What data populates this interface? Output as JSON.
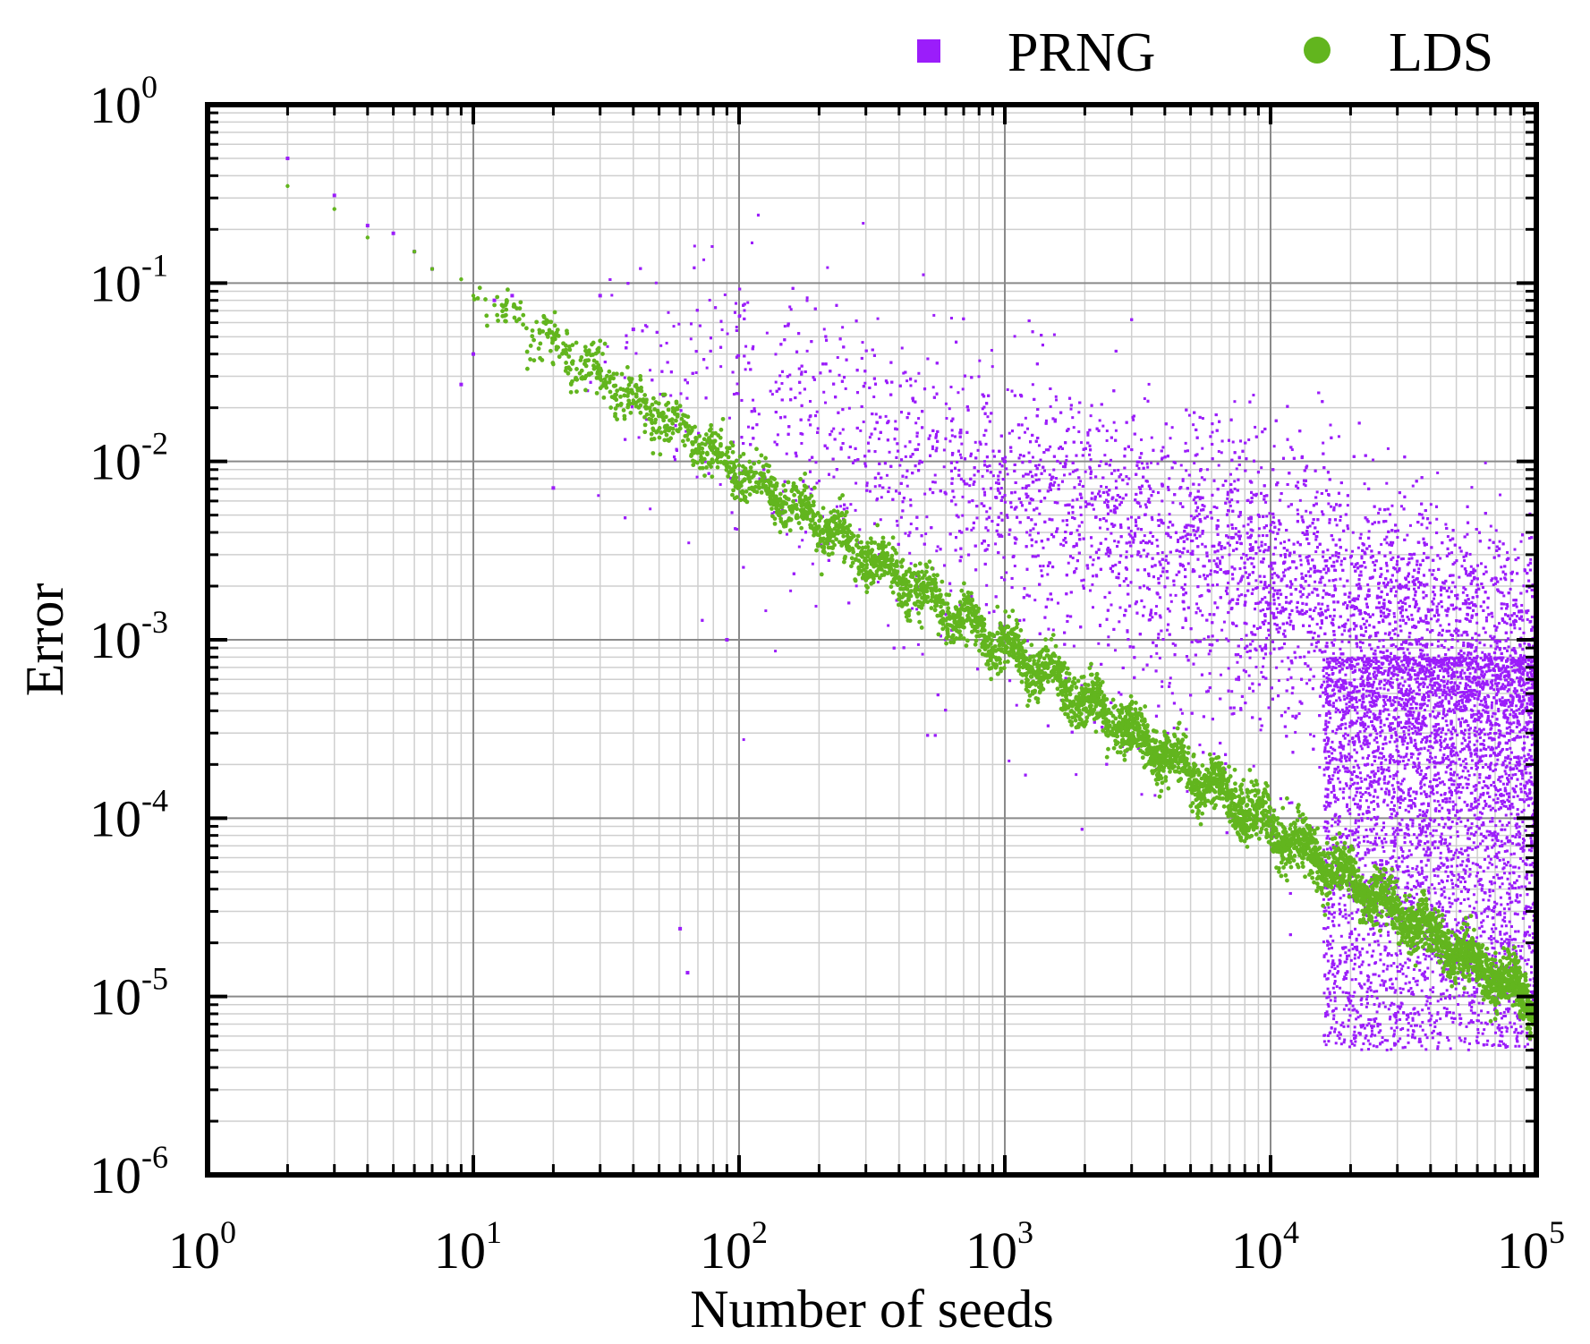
{
  "chart_data": {
    "type": "scatter",
    "title": "",
    "xlabel": "Number of seeds",
    "ylabel": "Error",
    "xscale": "log",
    "yscale": "log",
    "xlim": [
      1,
      100000
    ],
    "ylim": [
      1e-06,
      1
    ],
    "grid": true,
    "legend_position": "top-right, above plot",
    "x_ticks": [
      {
        "base": "10",
        "exp": "0",
        "value": 1
      },
      {
        "base": "10",
        "exp": "1",
        "value": 10
      },
      {
        "base": "10",
        "exp": "2",
        "value": 100
      },
      {
        "base": "10",
        "exp": "3",
        "value": 1000
      },
      {
        "base": "10",
        "exp": "4",
        "value": 10000
      },
      {
        "base": "10",
        "exp": "5",
        "value": 100000
      }
    ],
    "y_ticks": [
      {
        "base": "10",
        "exp": "0",
        "value": 1
      },
      {
        "base": "10",
        "exp": "-1",
        "value": 0.1
      },
      {
        "base": "10",
        "exp": "-2",
        "value": 0.01
      },
      {
        "base": "10",
        "exp": "-3",
        "value": 0.001
      },
      {
        "base": "10",
        "exp": "-4",
        "value": 0.0001
      },
      {
        "base": "10",
        "exp": "-5",
        "value": 1e-05
      },
      {
        "base": "10",
        "exp": "-6",
        "value": 1e-06
      }
    ],
    "series": [
      {
        "name": "PRNG",
        "color": "#9b1dfa",
        "marker": "square",
        "description": "Error roughly scales as N^-0.5 with wide scatter",
        "points": [
          {
            "x": 2,
            "y": 0.5
          },
          {
            "x": 3,
            "y": 0.31
          },
          {
            "x": 4,
            "y": 0.21
          },
          {
            "x": 5,
            "y": 0.19
          },
          {
            "x": 6,
            "y": 0.15
          },
          {
            "x": 7,
            "y": 0.12
          },
          {
            "x": 9,
            "y": 0.027
          },
          {
            "x": 10,
            "y": 0.04
          },
          {
            "x": 12,
            "y": 0.08
          },
          {
            "x": 14,
            "y": 0.085
          },
          {
            "x": 20,
            "y": 0.0071
          },
          {
            "x": 30,
            "y": 0.085
          },
          {
            "x": 40,
            "y": 0.055
          },
          {
            "x": 60,
            "y": 2.4e-05
          },
          {
            "x": 64,
            "y": 1.36e-05
          },
          {
            "x": 90,
            "y": 0.001
          },
          {
            "x": 1000,
            "y": 0.01
          },
          {
            "x": 100000,
            "y": 0.001
          }
        ]
      },
      {
        "name": "LDS",
        "color": "#62b51e",
        "marker": "circle",
        "description": "Error scales roughly as N^-1 with narrow scatter",
        "points": [
          {
            "x": 2,
            "y": 0.35
          },
          {
            "x": 3,
            "y": 0.26
          },
          {
            "x": 4,
            "y": 0.18
          },
          {
            "x": 6,
            "y": 0.15
          },
          {
            "x": 7,
            "y": 0.12
          },
          {
            "x": 9,
            "y": 0.105
          },
          {
            "x": 10,
            "y": 0.085
          },
          {
            "x": 20,
            "y": 0.035
          },
          {
            "x": 40,
            "y": 0.022
          },
          {
            "x": 100,
            "y": 0.0095
          },
          {
            "x": 300,
            "y": 0.0028
          },
          {
            "x": 1000,
            "y": 0.00075
          },
          {
            "x": 3000,
            "y": 0.00028
          },
          {
            "x": 10000,
            "y": 0.0001
          },
          {
            "x": 30000,
            "y": 3.5e-05
          },
          {
            "x": 100000,
            "y": 9e-06
          }
        ]
      }
    ]
  }
}
